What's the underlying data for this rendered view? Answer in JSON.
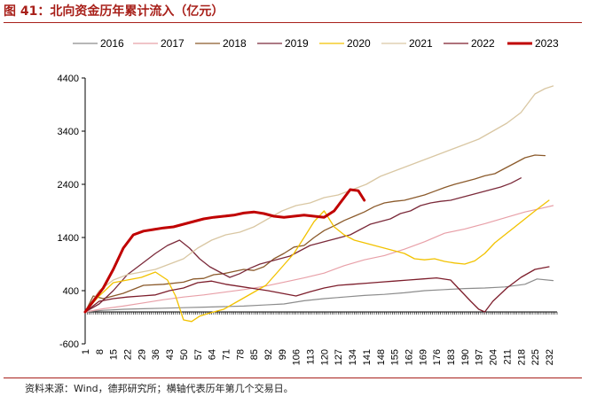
{
  "header": {
    "title": "图 41：北向资金历年累计流入（亿元）"
  },
  "footer": {
    "source": "资料来源：Wind，德邦研究所；横轴代表历年第几个交易日。"
  },
  "chart_data": {
    "type": "line",
    "title": "北向资金历年累计流入（亿元）",
    "xlabel": "",
    "ylabel": "",
    "xlim": [
      1,
      236
    ],
    "ylim": [
      -600,
      4400
    ],
    "yticks": [
      -600,
      400,
      1400,
      2400,
      3400,
      4400
    ],
    "xticks": [
      1,
      8,
      15,
      22,
      29,
      36,
      43,
      50,
      57,
      64,
      71,
      78,
      85,
      92,
      99,
      106,
      113,
      120,
      127,
      134,
      141,
      148,
      155,
      162,
      169,
      176,
      183,
      190,
      197,
      204,
      211,
      218,
      225,
      232
    ],
    "grid": false,
    "legend_position": "top",
    "series": [
      {
        "name": "2016",
        "color": "#8c8c8c",
        "width": 1.2,
        "points": [
          [
            1,
            0
          ],
          [
            10,
            30
          ],
          [
            20,
            50
          ],
          [
            30,
            60
          ],
          [
            40,
            70
          ],
          [
            50,
            80
          ],
          [
            60,
            90
          ],
          [
            70,
            100
          ],
          [
            80,
            110
          ],
          [
            90,
            130
          ],
          [
            100,
            150
          ],
          [
            110,
            210
          ],
          [
            120,
            250
          ],
          [
            130,
            280
          ],
          [
            140,
            310
          ],
          [
            150,
            330
          ],
          [
            160,
            360
          ],
          [
            170,
            400
          ],
          [
            180,
            420
          ],
          [
            190,
            440
          ],
          [
            200,
            450
          ],
          [
            210,
            470
          ],
          [
            220,
            520
          ],
          [
            226,
            620
          ],
          [
            234,
            590
          ]
        ]
      },
      {
        "name": "2017",
        "color": "#e8a0a8",
        "width": 1.2,
        "points": [
          [
            1,
            0
          ],
          [
            10,
            60
          ],
          [
            20,
            110
          ],
          [
            30,
            170
          ],
          [
            40,
            230
          ],
          [
            50,
            280
          ],
          [
            60,
            320
          ],
          [
            70,
            370
          ],
          [
            80,
            420
          ],
          [
            90,
            480
          ],
          [
            100,
            560
          ],
          [
            110,
            640
          ],
          [
            120,
            730
          ],
          [
            130,
            870
          ],
          [
            140,
            980
          ],
          [
            150,
            1060
          ],
          [
            160,
            1180
          ],
          [
            170,
            1320
          ],
          [
            180,
            1480
          ],
          [
            190,
            1560
          ],
          [
            200,
            1660
          ],
          [
            210,
            1770
          ],
          [
            220,
            1880
          ],
          [
            226,
            1930
          ],
          [
            234,
            2000
          ]
        ]
      },
      {
        "name": "2018",
        "color": "#8b5a2b",
        "width": 1.3,
        "points": [
          [
            1,
            0
          ],
          [
            5,
            300
          ],
          [
            10,
            250
          ],
          [
            20,
            350
          ],
          [
            30,
            500
          ],
          [
            40,
            520
          ],
          [
            50,
            560
          ],
          [
            55,
            620
          ],
          [
            60,
            630
          ],
          [
            65,
            700
          ],
          [
            70,
            720
          ],
          [
            75,
            760
          ],
          [
            80,
            800
          ],
          [
            85,
            780
          ],
          [
            90,
            850
          ],
          [
            95,
            1000
          ],
          [
            100,
            1100
          ],
          [
            105,
            1220
          ],
          [
            110,
            1250
          ],
          [
            115,
            1400
          ],
          [
            120,
            1530
          ],
          [
            125,
            1620
          ],
          [
            130,
            1720
          ],
          [
            135,
            1800
          ],
          [
            140,
            1880
          ],
          [
            145,
            1980
          ],
          [
            150,
            2050
          ],
          [
            155,
            2080
          ],
          [
            160,
            2100
          ],
          [
            165,
            2150
          ],
          [
            170,
            2200
          ],
          [
            175,
            2270
          ],
          [
            180,
            2340
          ],
          [
            185,
            2400
          ],
          [
            190,
            2450
          ],
          [
            195,
            2500
          ],
          [
            200,
            2560
          ],
          [
            205,
            2600
          ],
          [
            210,
            2700
          ],
          [
            215,
            2800
          ],
          [
            220,
            2900
          ],
          [
            225,
            2950
          ],
          [
            230,
            2940
          ]
        ]
      },
      {
        "name": "2019",
        "color": "#7b2a3a",
        "width": 1.3,
        "points": [
          [
            1,
            0
          ],
          [
            8,
            150
          ],
          [
            15,
            400
          ],
          [
            22,
            700
          ],
          [
            29,
            900
          ],
          [
            36,
            1100
          ],
          [
            42,
            1250
          ],
          [
            48,
            1350
          ],
          [
            53,
            1200
          ],
          [
            58,
            1000
          ],
          [
            63,
            850
          ],
          [
            68,
            750
          ],
          [
            73,
            650
          ],
          [
            78,
            720
          ],
          [
            83,
            820
          ],
          [
            88,
            900
          ],
          [
            93,
            950
          ],
          [
            98,
            1000
          ],
          [
            103,
            1050
          ],
          [
            108,
            1150
          ],
          [
            113,
            1250
          ],
          [
            118,
            1300
          ],
          [
            123,
            1350
          ],
          [
            128,
            1400
          ],
          [
            133,
            1450
          ],
          [
            138,
            1550
          ],
          [
            143,
            1650
          ],
          [
            148,
            1700
          ],
          [
            153,
            1750
          ],
          [
            158,
            1850
          ],
          [
            163,
            1900
          ],
          [
            168,
            2000
          ],
          [
            173,
            2050
          ],
          [
            178,
            2080
          ],
          [
            183,
            2100
          ],
          [
            188,
            2150
          ],
          [
            193,
            2200
          ],
          [
            198,
            2250
          ],
          [
            203,
            2300
          ],
          [
            208,
            2350
          ],
          [
            213,
            2420
          ],
          [
            218,
            2520
          ]
        ]
      },
      {
        "name": "2020",
        "color": "#f2c200",
        "width": 1.3,
        "points": [
          [
            1,
            0
          ],
          [
            8,
            300
          ],
          [
            15,
            550
          ],
          [
            22,
            600
          ],
          [
            29,
            650
          ],
          [
            36,
            750
          ],
          [
            42,
            600
          ],
          [
            46,
            300
          ],
          [
            50,
            -150
          ],
          [
            54,
            -180
          ],
          [
            58,
            -80
          ],
          [
            63,
            -20
          ],
          [
            70,
            50
          ],
          [
            77,
            200
          ],
          [
            84,
            350
          ],
          [
            91,
            500
          ],
          [
            98,
            800
          ],
          [
            105,
            1100
          ],
          [
            110,
            1400
          ],
          [
            115,
            1700
          ],
          [
            120,
            1900
          ],
          [
            125,
            1600
          ],
          [
            130,
            1450
          ],
          [
            135,
            1350
          ],
          [
            140,
            1300
          ],
          [
            145,
            1250
          ],
          [
            150,
            1200
          ],
          [
            155,
            1150
          ],
          [
            160,
            1100
          ],
          [
            165,
            1000
          ],
          [
            170,
            980
          ],
          [
            175,
            1000
          ],
          [
            180,
            950
          ],
          [
            185,
            920
          ],
          [
            190,
            900
          ],
          [
            195,
            960
          ],
          [
            200,
            1100
          ],
          [
            205,
            1300
          ],
          [
            210,
            1450
          ],
          [
            215,
            1600
          ],
          [
            220,
            1750
          ],
          [
            225,
            1900
          ],
          [
            232,
            2100
          ]
        ]
      },
      {
        "name": "2021",
        "color": "#d9c7a3",
        "width": 1.3,
        "points": [
          [
            1,
            0
          ],
          [
            8,
            400
          ],
          [
            15,
            600
          ],
          [
            22,
            700
          ],
          [
            29,
            750
          ],
          [
            36,
            800
          ],
          [
            43,
            900
          ],
          [
            50,
            1000
          ],
          [
            57,
            1200
          ],
          [
            64,
            1350
          ],
          [
            71,
            1450
          ],
          [
            78,
            1500
          ],
          [
            85,
            1600
          ],
          [
            92,
            1750
          ],
          [
            99,
            1900
          ],
          [
            106,
            2000
          ],
          [
            113,
            2050
          ],
          [
            120,
            2150
          ],
          [
            127,
            2200
          ],
          [
            134,
            2300
          ],
          [
            141,
            2400
          ],
          [
            148,
            2550
          ],
          [
            155,
            2650
          ],
          [
            162,
            2750
          ],
          [
            169,
            2850
          ],
          [
            176,
            2950
          ],
          [
            183,
            3050
          ],
          [
            190,
            3150
          ],
          [
            197,
            3250
          ],
          [
            204,
            3400
          ],
          [
            211,
            3550
          ],
          [
            218,
            3750
          ],
          [
            225,
            4100
          ],
          [
            230,
            4200
          ],
          [
            234,
            4250
          ]
        ]
      },
      {
        "name": "2022",
        "color": "#7d1e2c",
        "width": 1.3,
        "points": [
          [
            1,
            0
          ],
          [
            8,
            200
          ],
          [
            15,
            250
          ],
          [
            22,
            280
          ],
          [
            29,
            300
          ],
          [
            36,
            320
          ],
          [
            43,
            400
          ],
          [
            50,
            450
          ],
          [
            57,
            550
          ],
          [
            64,
            580
          ],
          [
            71,
            520
          ],
          [
            78,
            480
          ],
          [
            85,
            440
          ],
          [
            92,
            400
          ],
          [
            99,
            350
          ],
          [
            106,
            300
          ],
          [
            113,
            380
          ],
          [
            120,
            450
          ],
          [
            127,
            500
          ],
          [
            134,
            520
          ],
          [
            141,
            540
          ],
          [
            148,
            560
          ],
          [
            155,
            580
          ],
          [
            162,
            600
          ],
          [
            169,
            620
          ],
          [
            176,
            640
          ],
          [
            183,
            600
          ],
          [
            188,
            400
          ],
          [
            193,
            200
          ],
          [
            197,
            50
          ],
          [
            200,
            0
          ],
          [
            204,
            200
          ],
          [
            211,
            450
          ],
          [
            218,
            650
          ],
          [
            225,
            800
          ],
          [
            232,
            850
          ]
        ]
      },
      {
        "name": "2023",
        "color": "#c00000",
        "width": 3,
        "points": [
          [
            1,
            0
          ],
          [
            5,
            200
          ],
          [
            10,
            450
          ],
          [
            15,
            800
          ],
          [
            20,
            1200
          ],
          [
            25,
            1450
          ],
          [
            30,
            1520
          ],
          [
            35,
            1550
          ],
          [
            40,
            1580
          ],
          [
            45,
            1600
          ],
          [
            50,
            1650
          ],
          [
            55,
            1700
          ],
          [
            60,
            1750
          ],
          [
            65,
            1780
          ],
          [
            70,
            1800
          ],
          [
            75,
            1820
          ],
          [
            80,
            1860
          ],
          [
            85,
            1880
          ],
          [
            90,
            1850
          ],
          [
            95,
            1800
          ],
          [
            100,
            1780
          ],
          [
            105,
            1800
          ],
          [
            110,
            1820
          ],
          [
            115,
            1800
          ],
          [
            120,
            1780
          ],
          [
            125,
            1900
          ],
          [
            130,
            2150
          ],
          [
            133,
            2300
          ],
          [
            137,
            2280
          ],
          [
            140,
            2100
          ]
        ]
      }
    ]
  }
}
